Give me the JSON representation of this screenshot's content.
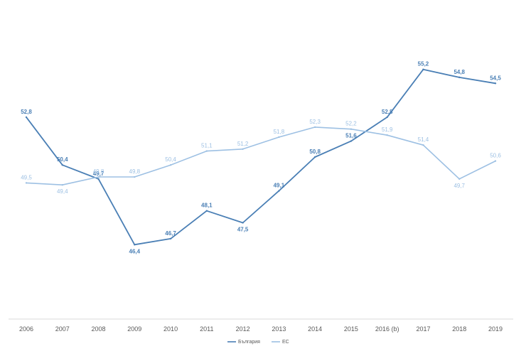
{
  "chart_data": {
    "type": "line",
    "categories": [
      "2006",
      "2007",
      "2008",
      "2009",
      "2010",
      "2011",
      "2012",
      "2013",
      "2014",
      "2015",
      "2016 (b)",
      "2017",
      "2018",
      "2019"
    ],
    "series": [
      {
        "name": "България",
        "color": "#4a7fb5",
        "values": [
          52.8,
          50.4,
          49.7,
          46.4,
          46.7,
          48.1,
          47.5,
          49.1,
          50.8,
          51.6,
          52.8,
          55.2,
          54.8,
          54.5
        ],
        "labels": [
          "52,8",
          "50,4",
          "49,7",
          "46,4",
          "46,7",
          "48,1",
          "47,5",
          "49,1",
          "50,8",
          "51,6",
          "52,8",
          "55,2",
          "54,8",
          "54,5"
        ]
      },
      {
        "name": "ЕС",
        "color": "#9dc0e3",
        "values": [
          49.5,
          49.4,
          49.8,
          49.8,
          50.4,
          51.1,
          51.2,
          51.8,
          52.3,
          52.2,
          51.9,
          51.4,
          49.7,
          50.6
        ],
        "labels": [
          "49,5",
          "49,4",
          "49,8",
          "49,8",
          "50,4",
          "51,1",
          "51,2",
          "51,8",
          "52,3",
          "52,2",
          "51,9",
          "51,4",
          "49,7",
          "50,6"
        ]
      }
    ],
    "ylim": [
      43.7,
      56.9
    ],
    "grid": false,
    "legend_position": "bottom-center"
  }
}
